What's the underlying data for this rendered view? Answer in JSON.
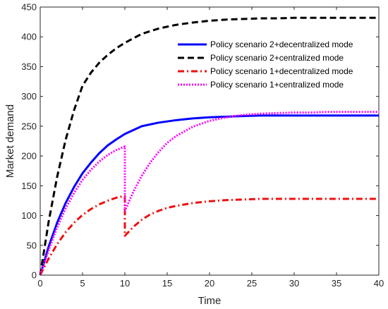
{
  "chart_data": {
    "type": "line",
    "title": "",
    "xlabel": "Time",
    "ylabel": "Market demand",
    "xlim": [
      0,
      40
    ],
    "ylim": [
      0,
      450
    ],
    "xticks": [
      0,
      5,
      10,
      15,
      20,
      25,
      30,
      35,
      40
    ],
    "yticks": [
      0,
      50,
      100,
      150,
      200,
      250,
      300,
      350,
      400,
      450
    ],
    "grid": false,
    "legend_position": "top-right",
    "series": [
      {
        "name": "Policy scenario 2+decentralized mode",
        "color": "#0000ff",
        "style": "solid",
        "x": [
          0,
          1,
          2,
          3,
          4,
          5,
          6,
          7,
          8,
          9,
          10,
          12,
          14,
          16,
          18,
          20,
          22,
          24,
          26,
          28,
          30,
          32,
          34,
          36,
          38,
          40
        ],
        "y": [
          0,
          48,
          88,
          121,
          148,
          171,
          189,
          205,
          218,
          228,
          237,
          250,
          256,
          260,
          263,
          265,
          266,
          267,
          268,
          268,
          268,
          268,
          268,
          268,
          268,
          268
        ]
      },
      {
        "name": "Policy scenario 2+centralized mode",
        "color": "#000000",
        "style": "dashed",
        "x": [
          0,
          1,
          2,
          3,
          4,
          5,
          6,
          7,
          8,
          9,
          10,
          12,
          14,
          16,
          18,
          20,
          22,
          24,
          26,
          28,
          30,
          32,
          34,
          36,
          38,
          40
        ],
        "y": [
          0,
          90,
          165,
          227,
          277,
          318,
          340,
          357,
          370,
          381,
          390,
          405,
          414,
          420,
          424,
          427,
          429,
          430,
          431,
          431,
          432,
          432,
          432,
          432,
          432,
          432
        ]
      },
      {
        "name": "Policy scenario 1+decentralized mode",
        "color": "#ee1111",
        "style": "dashdot",
        "x": [
          0,
          1,
          2,
          3,
          4,
          5,
          6,
          7,
          8,
          9,
          10,
          10,
          11,
          12,
          13,
          14,
          15,
          16,
          18,
          20,
          22,
          24,
          26,
          28,
          30,
          32,
          34,
          36,
          38,
          40
        ],
        "y": [
          0,
          28,
          52,
          72,
          88,
          101,
          111,
          119,
          125,
          130,
          133,
          66,
          81,
          93,
          102,
          108,
          113,
          116,
          121,
          124,
          126,
          127,
          128,
          128,
          128,
          128,
          128,
          128,
          128,
          128
        ]
      },
      {
        "name": "Policy scenario 1+centralized mode",
        "color": "#ff00ff",
        "style": "dotted",
        "x": [
          0,
          1,
          2,
          3,
          4,
          5,
          6,
          7,
          8,
          9,
          10,
          10,
          11,
          12,
          13,
          14,
          15,
          16,
          18,
          20,
          22,
          24,
          26,
          28,
          30,
          32,
          34,
          36,
          38,
          40
        ],
        "y": [
          0,
          42,
          80,
          112,
          138,
          160,
          177,
          191,
          202,
          210,
          216,
          108,
          140,
          167,
          189,
          207,
          222,
          233,
          249,
          259,
          265,
          269,
          271,
          272,
          273,
          273,
          274,
          274,
          274,
          274
        ]
      }
    ]
  }
}
